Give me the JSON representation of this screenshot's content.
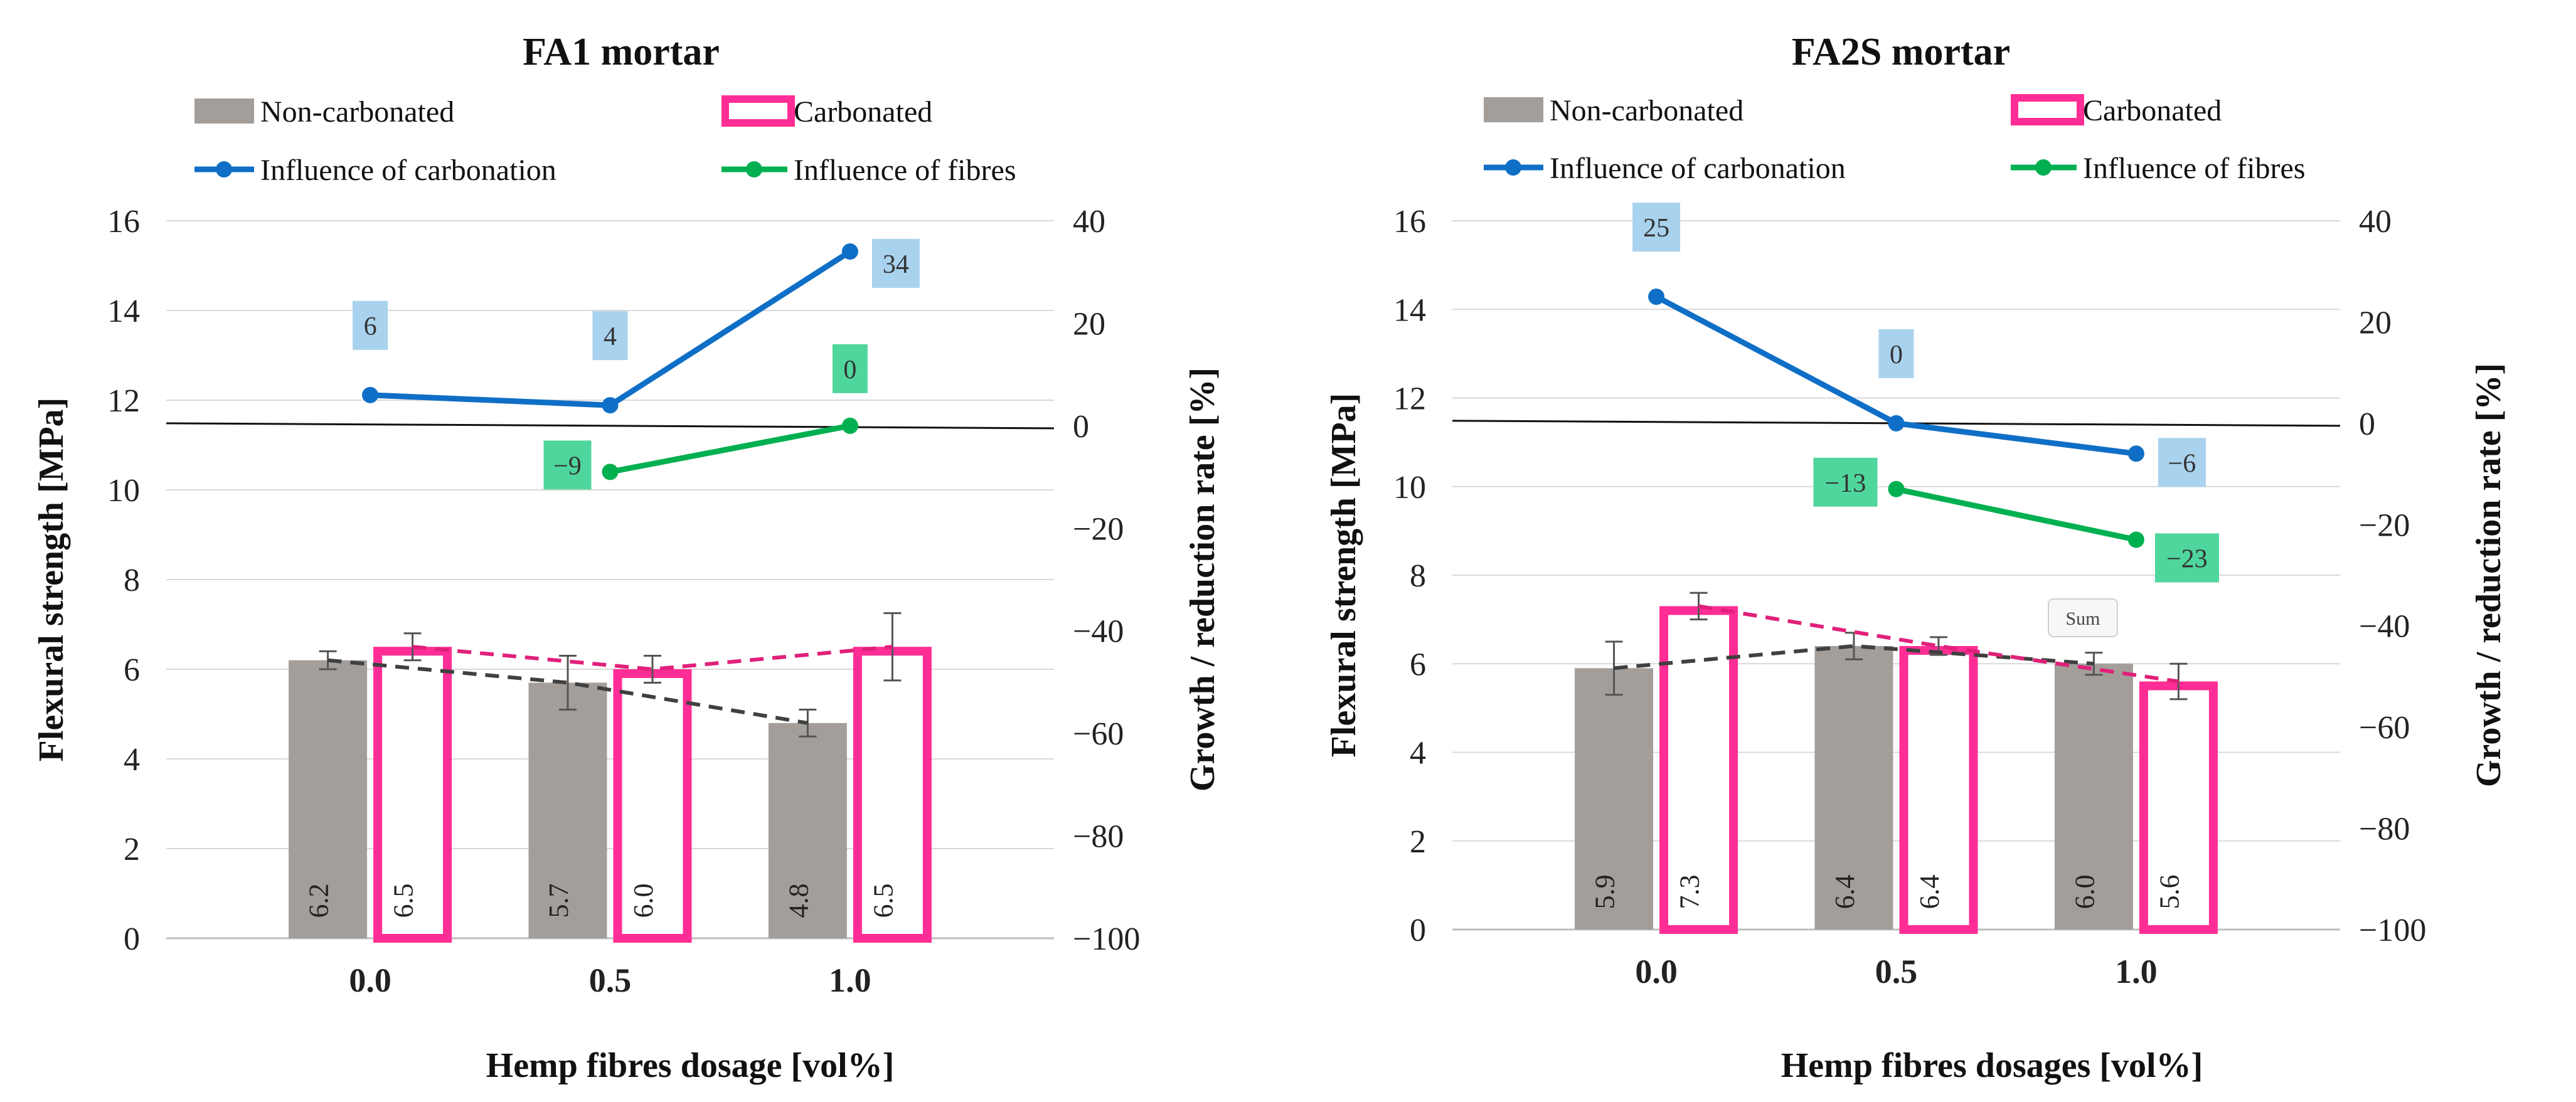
{
  "chart_data": [
    {
      "type": "bar",
      "title": "FA1 mortar",
      "xlabel": "Hemp fibres dosage [vol%]",
      "ylabel": "Flexural strength [MPa]",
      "y2label": "Growth / reduction rate [%]",
      "ylim": [
        0,
        16
      ],
      "y2lim": [
        -100,
        40
      ],
      "yticks": [
        "0",
        "2",
        "4",
        "6",
        "8",
        "10",
        "12",
        "14",
        "16"
      ],
      "y2ticks": [
        "40",
        "20",
        "0",
        "−20",
        "−40",
        "−60",
        "−80",
        "−100"
      ],
      "categories": [
        "0.0",
        "0.5",
        "1.0"
      ],
      "series": [
        {
          "name": "Non-carbonated",
          "values": [
            6.2,
            5.7,
            4.8
          ],
          "labels": [
            "6.2",
            "5.7",
            "4.8"
          ],
          "errors": [
            0.2,
            0.6,
            0.3
          ],
          "color": "#a39e9a"
        },
        {
          "name": "Carbonated",
          "values": [
            6.5,
            6.0,
            6.5
          ],
          "labels": [
            "6.5",
            "6.0",
            "6.5"
          ],
          "errors": [
            0.3,
            0.3,
            0.75
          ],
          "color": "#ff2d95"
        }
      ],
      "rate_series": [
        {
          "name": "Influence of carbonation",
          "values": [
            6,
            4,
            34
          ],
          "labels": [
            "6",
            "4",
            "34"
          ],
          "color": "#0f6fc6",
          "label_bg": "#a9d2ee"
        },
        {
          "name": "Influence of fibres",
          "values": [
            null,
            -9,
            0
          ],
          "labels": [
            "",
            "−9",
            "0"
          ],
          "color": "#00b050",
          "label_bg": "#4fd69c"
        }
      ],
      "legend": [
        "Non-carbonated",
        "Carbonated",
        "Influence of carbonation",
        "Influence of fibres"
      ]
    },
    {
      "type": "bar",
      "title": "FA2S mortar",
      "xlabel": "Hemp fibres dosages [vol%]",
      "ylabel": "Flexural strength [MPa]",
      "y2label": "Growth / reduction rate [%]",
      "ylim": [
        0,
        16
      ],
      "y2lim": [
        -100,
        40
      ],
      "yticks": [
        "0",
        "2",
        "4",
        "6",
        "8",
        "10",
        "12",
        "14",
        "16"
      ],
      "y2ticks": [
        "40",
        "20",
        "0",
        "−20",
        "−40",
        "−60",
        "−80",
        "−100"
      ],
      "categories": [
        "0.0",
        "0.5",
        "1.0"
      ],
      "series": [
        {
          "name": "Non-carbonated",
          "values": [
            5.9,
            6.4,
            6.0
          ],
          "labels": [
            "5.9",
            "6.4",
            "6.0"
          ],
          "errors": [
            0.6,
            0.3,
            0.25
          ],
          "color": "#a39e9a"
        },
        {
          "name": "Carbonated",
          "values": [
            7.3,
            6.4,
            5.6
          ],
          "labels": [
            "7.3",
            "6.4",
            "5.6"
          ],
          "errors": [
            0.3,
            0.2,
            0.4
          ],
          "color": "#ff2d95"
        }
      ],
      "rate_series": [
        {
          "name": "Influence of carbonation",
          "values": [
            25,
            0,
            -6
          ],
          "labels": [
            "25",
            "0",
            "−6"
          ],
          "color": "#0f6fc6",
          "label_bg": "#a9d2ee"
        },
        {
          "name": "Influence of fibres",
          "values": [
            null,
            -13,
            -23
          ],
          "labels": [
            "",
            "−13",
            "−23"
          ],
          "color": "#00b050",
          "label_bg": "#4fd69c"
        }
      ],
      "legend": [
        "Non-carbonated",
        "Carbonated",
        "Influence of carbonation",
        "Influence of fibres"
      ],
      "tooltip": "Sum"
    }
  ]
}
